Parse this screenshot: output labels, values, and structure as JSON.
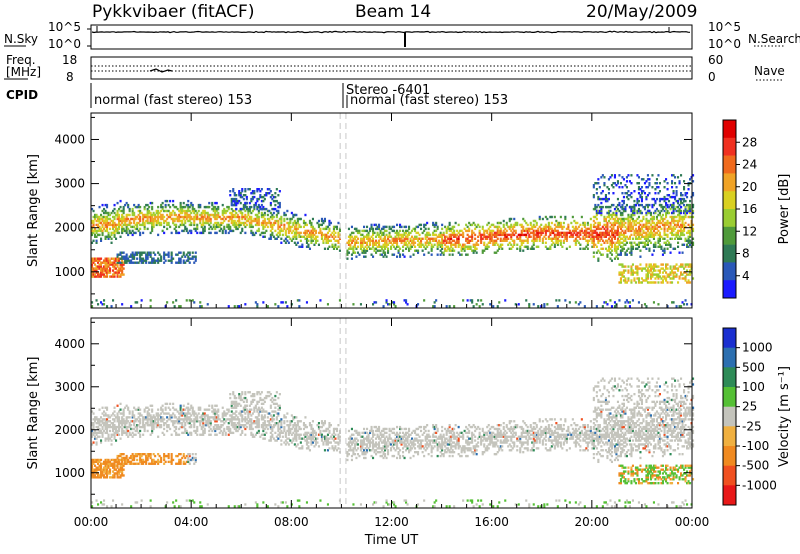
{
  "header": {
    "radar": "Pykkvibaer (fitACF)",
    "beam": "Beam 14",
    "date": "20/May/2009"
  },
  "noise_panel": {
    "left_label": "N.Sky",
    "right_label": "N.Search",
    "left_ticks": [
      "10^5",
      "10^0"
    ],
    "right_ticks": [
      "10^5",
      "10^0"
    ]
  },
  "freq_panel": {
    "left_label_1": "Freq.",
    "left_label_2": "[MHz]",
    "right_label": "Nave",
    "left_ticks": [
      "18",
      "8"
    ],
    "right_ticks": [
      "60",
      "0"
    ]
  },
  "cpid_panel": {
    "label": "CPID",
    "segments": [
      "normal (fast stereo) 153",
      "Stereo -6401",
      "normal (fast stereo) 153"
    ]
  },
  "chart_data": [
    {
      "type": "heatmap",
      "title": "Power",
      "ylabel": "Slant Range [km]",
      "ylim": [
        180,
        4600
      ],
      "y_ticks": [
        "1000",
        "2000",
        "3000",
        "4000"
      ],
      "x_ticks": [
        "00:00",
        "04:00",
        "08:00",
        "12:00",
        "16:00",
        "20:00",
        "00:00"
      ],
      "xlim_hours": [
        0,
        24
      ],
      "colorbar_label": "Power [dB]",
      "colorbar_ticks": [
        "4",
        "8",
        "12",
        "16",
        "20",
        "24",
        "28"
      ],
      "colors": [
        "#1b1bff",
        "#2a58b8",
        "#2f7a55",
        "#4f9a3a",
        "#9acd32",
        "#d9d021",
        "#f0a326",
        "#f06a1d",
        "#f03020",
        "#e00000"
      ]
    },
    {
      "type": "heatmap",
      "title": "Velocity",
      "ylabel": "Slant Range [km]",
      "xlabel": "Time UT",
      "ylim": [
        180,
        4600
      ],
      "y_ticks": [
        "1000",
        "2000",
        "3000",
        "4000"
      ],
      "x_ticks": [
        "00:00",
        "04:00",
        "08:00",
        "12:00",
        "16:00",
        "20:00",
        "00:00"
      ],
      "xlim_hours": [
        0,
        24
      ],
      "colorbar_label": "Velocity [m s⁻¹]",
      "colorbar_ticks": [
        "1000",
        "500",
        "100",
        "25",
        "-25",
        "-100",
        "-500",
        "-1000"
      ],
      "colors": [
        "#1a2fd0",
        "#2c6fb0",
        "#2e8b57",
        "#55c035",
        "#c4c4bc",
        "#f0b040",
        "#f08a20",
        "#f05020",
        "#e81818"
      ]
    }
  ]
}
